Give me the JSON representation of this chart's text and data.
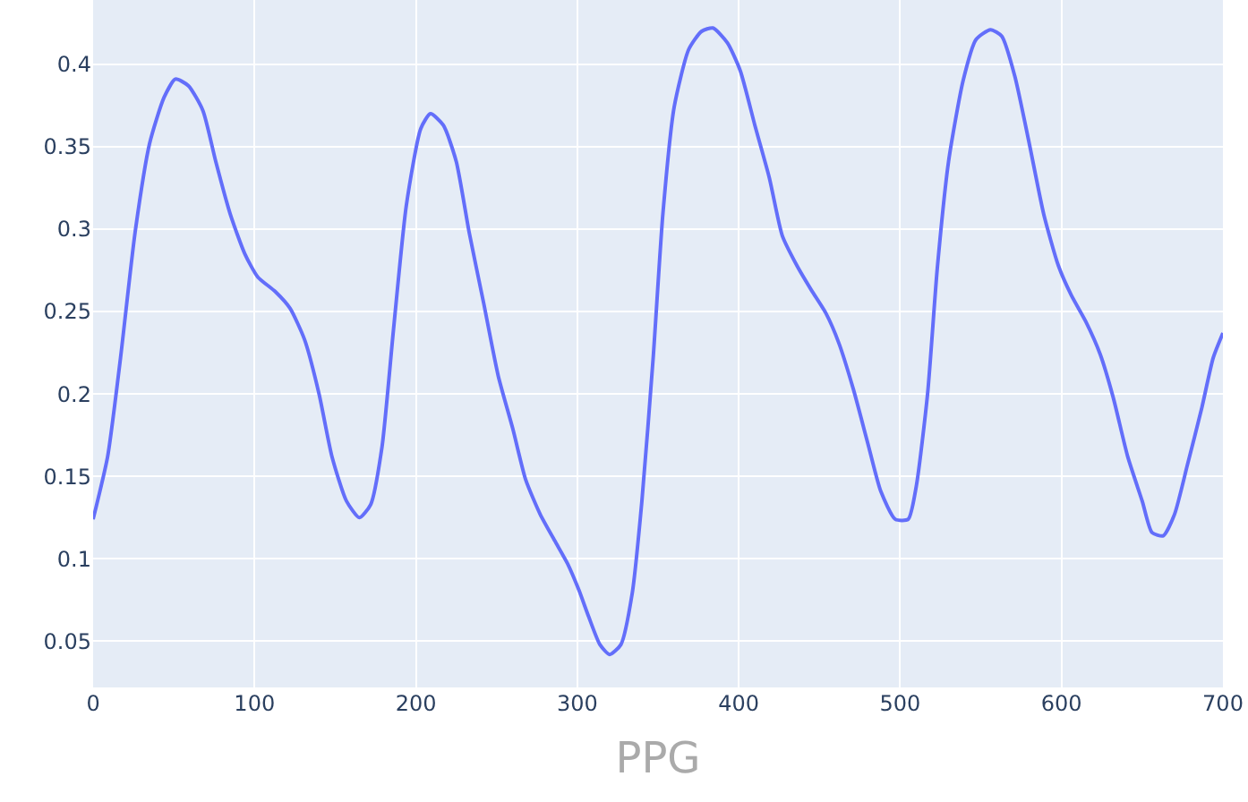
{
  "chart_data": {
    "type": "line",
    "xlabel": "PPG",
    "xlim": [
      0,
      700
    ],
    "xticks": [
      0,
      100,
      200,
      300,
      400,
      500,
      600,
      700
    ],
    "ylim": [
      0.022,
      0.439
    ],
    "yticks": [
      0.05,
      0.1,
      0.15,
      0.2,
      0.25,
      0.3,
      0.35,
      0.4
    ],
    "grid": true,
    "legend": false,
    "marker": "none",
    "line_style": "solid",
    "x": [
      0,
      9,
      17,
      26,
      35,
      44,
      51,
      59,
      68,
      76,
      85,
      94,
      102,
      113,
      122,
      131,
      140,
      148,
      157,
      165,
      172,
      179,
      186,
      194,
      203,
      209,
      217,
      225,
      233,
      242,
      251,
      260,
      268,
      277,
      286,
      294,
      301,
      307,
      314,
      320,
      327,
      334,
      340,
      347,
      353,
      360,
      369,
      377,
      384,
      393,
      401,
      410,
      419,
      427,
      436,
      445,
      454,
      462,
      471,
      480,
      488,
      497,
      505,
      510,
      517,
      523,
      530,
      539,
      547,
      556,
      563,
      571,
      580,
      589,
      598,
      606,
      615,
      624,
      632,
      641,
      650,
      656,
      663,
      670,
      678,
      687,
      694,
      700
    ],
    "series": [
      {
        "color": "#636efa",
        "values": [
          0.124,
          0.162,
          0.222,
          0.298,
          0.352,
          0.38,
          0.391,
          0.387,
          0.372,
          0.341,
          0.309,
          0.285,
          0.271,
          0.262,
          0.252,
          0.233,
          0.2,
          0.162,
          0.135,
          0.125,
          0.133,
          0.168,
          0.238,
          0.314,
          0.361,
          0.37,
          0.363,
          0.341,
          0.298,
          0.255,
          0.211,
          0.179,
          0.148,
          0.127,
          0.111,
          0.097,
          0.081,
          0.065,
          0.048,
          0.042,
          0.048,
          0.079,
          0.135,
          0.222,
          0.309,
          0.374,
          0.409,
          0.42,
          0.422,
          0.413,
          0.396,
          0.363,
          0.331,
          0.296,
          0.278,
          0.263,
          0.249,
          0.231,
          0.203,
          0.17,
          0.141,
          0.124,
          0.124,
          0.144,
          0.2,
          0.276,
          0.341,
          0.39,
          0.415,
          0.421,
          0.417,
          0.393,
          0.352,
          0.309,
          0.278,
          0.26,
          0.244,
          0.224,
          0.198,
          0.162,
          0.135,
          0.116,
          0.114,
          0.127,
          0.157,
          0.192,
          0.222,
          0.237
        ]
      }
    ]
  }
}
